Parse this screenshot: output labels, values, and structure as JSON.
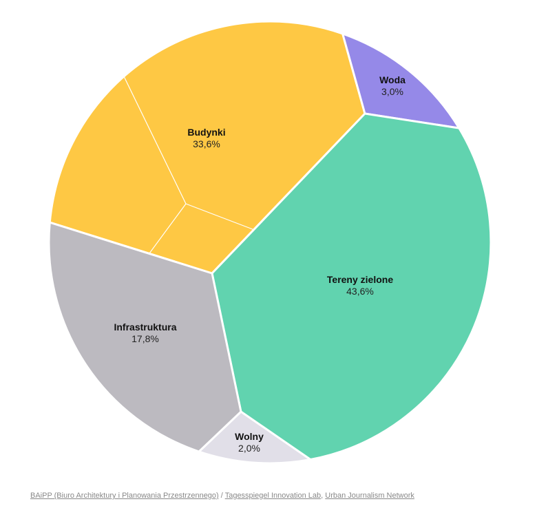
{
  "chart_data": {
    "type": "voronoi-treemap",
    "cells": [
      {
        "id": "budynki",
        "name": "Budynki",
        "value_label": "33,6%",
        "value": 33.6,
        "color": "#FEC844"
      },
      {
        "id": "woda",
        "name": "Woda",
        "value_label": "3,0%",
        "value": 3.0,
        "color": "#9589E8"
      },
      {
        "id": "tereny",
        "name": "Tereny zielone",
        "value_label": "43,6%",
        "value": 43.6,
        "color": "#61D3AF"
      },
      {
        "id": "wolny",
        "name": "Wolny",
        "value_label": "2,0%",
        "value": 2.0,
        "color": "#E1DFE8"
      },
      {
        "id": "infra",
        "name": "Infrastruktura",
        "value_label": "17,8%",
        "value": 17.8,
        "color": "#BCBAC0"
      }
    ]
  },
  "source": {
    "link1": "BAiPP (Biuro Architektury i Planowania Przestrzennego)",
    "sep1": " / ",
    "link2": "Tagesspiegel Innovation Lab",
    "sep2": ", ",
    "link3": "Urban Journalism Network"
  }
}
